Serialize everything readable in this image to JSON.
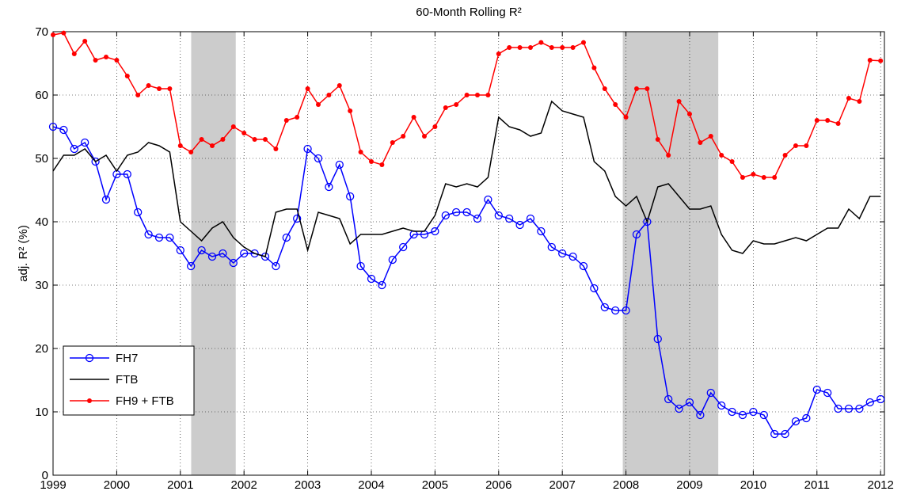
{
  "chart_data": {
    "type": "line",
    "title": "60-Month Rolling R²",
    "y_label": "adj. R² (%)",
    "x": [
      1999,
      1999.1667,
      1999.3333,
      1999.5,
      1999.6667,
      1999.8333,
      2000,
      2000.1667,
      2000.3333,
      2000.5,
      2000.6667,
      2000.8333,
      2001,
      2001.1667,
      2001.3333,
      2001.5,
      2001.6667,
      2001.8333,
      2002,
      2002.1667,
      2002.3333,
      2002.5,
      2002.6667,
      2002.8333,
      2003,
      2003.1667,
      2003.3333,
      2003.5,
      2003.6667,
      2003.8333,
      2004,
      2004.1667,
      2004.3333,
      2004.5,
      2004.6667,
      2004.8333,
      2005,
      2005.1667,
      2005.3333,
      2005.5,
      2005.6667,
      2005.8333,
      2006,
      2006.1667,
      2006.3333,
      2006.5,
      2006.6667,
      2006.8333,
      2007,
      2007.1667,
      2007.3333,
      2007.5,
      2007.6667,
      2007.8333,
      2008,
      2008.1667,
      2008.3333,
      2008.5,
      2008.6667,
      2008.8333,
      2009,
      2009.1667,
      2009.3333,
      2009.5,
      2009.6667,
      2009.8333,
      2010,
      2010.1667,
      2010.3333,
      2010.5,
      2010.6667,
      2010.8333,
      2011,
      2011.1667,
      2011.3333,
      2011.5,
      2011.6667,
      2011.8333,
      2012
    ],
    "series": [
      {
        "name": "FH7",
        "color": "#0000ff",
        "marker": "circle",
        "values": [
          55,
          54.5,
          51.5,
          52.5,
          49.5,
          43.5,
          47.5,
          47.5,
          41.5,
          38,
          37.5,
          37.5,
          35.5,
          33,
          35.5,
          34.5,
          35,
          33.5,
          35,
          35,
          34.5,
          33,
          37.5,
          40.5,
          51.5,
          50,
          45.5,
          49,
          44,
          33,
          31,
          30,
          34,
          36,
          38,
          38,
          38.5,
          41,
          41.5,
          41.5,
          40.5,
          43.5,
          41,
          40.5,
          39.5,
          40.5,
          38.5,
          36,
          35,
          34.5,
          33,
          29.5,
          26.5,
          26,
          26,
          38,
          40,
          21.5,
          12,
          10.5,
          11.5,
          9.5,
          13,
          11,
          10,
          9.5,
          10,
          9.5,
          6.5,
          6.5,
          8.5,
          9,
          13.5,
          13,
          10.5,
          10.5,
          10.5,
          11.5,
          12
        ]
      },
      {
        "name": "FTB",
        "color": "#000000",
        "marker": "none",
        "values": [
          48,
          50.5,
          50.5,
          51.5,
          49.5,
          50.5,
          48,
          50.5,
          51,
          52.5,
          52,
          51,
          40,
          38.5,
          37,
          39,
          40,
          37.5,
          36,
          35,
          34.5,
          41.5,
          42,
          42,
          35.5,
          41.5,
          41,
          40.5,
          36.5,
          38,
          38,
          38,
          38.5,
          39,
          38.5,
          38.5,
          41,
          46,
          45.5,
          46,
          45.5,
          47,
          56.5,
          55,
          54.5,
          53.5,
          54,
          59,
          57.5,
          57,
          56.5,
          49.5,
          48,
          44,
          42.5,
          44,
          40,
          45.5,
          46,
          44,
          42,
          42,
          42.5,
          38,
          35.5,
          35,
          37,
          36.5,
          36.5,
          37,
          37.5,
          37,
          38,
          39,
          39,
          42,
          40.5,
          44,
          44
        ]
      },
      {
        "name": "FH9 + FTB",
        "color": "#ff0000",
        "marker": "dot",
        "values": [
          69.5,
          69.8,
          66.5,
          68.5,
          65.5,
          66,
          65.5,
          63,
          60,
          61.5,
          61,
          61,
          52,
          51,
          53,
          52,
          53,
          55,
          54,
          53,
          53,
          51.5,
          56,
          56.5,
          61,
          58.5,
          60,
          61.5,
          57.5,
          51,
          49.5,
          49,
          52.5,
          53.5,
          56.5,
          53.5,
          55,
          58,
          58.5,
          60,
          60,
          60,
          66.5,
          67.5,
          67.5,
          67.5,
          68.3,
          67.5,
          67.5,
          67.5,
          68.3,
          64.3,
          61,
          58.5,
          56.5,
          61,
          61,
          53,
          50.5,
          59,
          57,
          52.5,
          53.5,
          50.5,
          49.5,
          47,
          47.5,
          47,
          47,
          50.5,
          52,
          52,
          56,
          56,
          55.5,
          59.5,
          59,
          65.5,
          65.4
        ]
      }
    ],
    "shaded_regions": [
      [
        2001.17,
        2001.87
      ],
      [
        2007.95,
        2009.45
      ]
    ],
    "shade_color": "#cccccc",
    "xlim": [
      1999,
      2012.06
    ],
    "xticks": [
      1999,
      2000,
      2001,
      2002,
      2003,
      2004,
      2005,
      2006,
      2007,
      2008,
      2009,
      2010,
      2011,
      2012
    ],
    "ylim": [
      0,
      70
    ],
    "yticks": [
      0,
      10,
      20,
      30,
      40,
      50,
      60,
      70
    ],
    "grid": true,
    "legend_position": "lower left"
  }
}
